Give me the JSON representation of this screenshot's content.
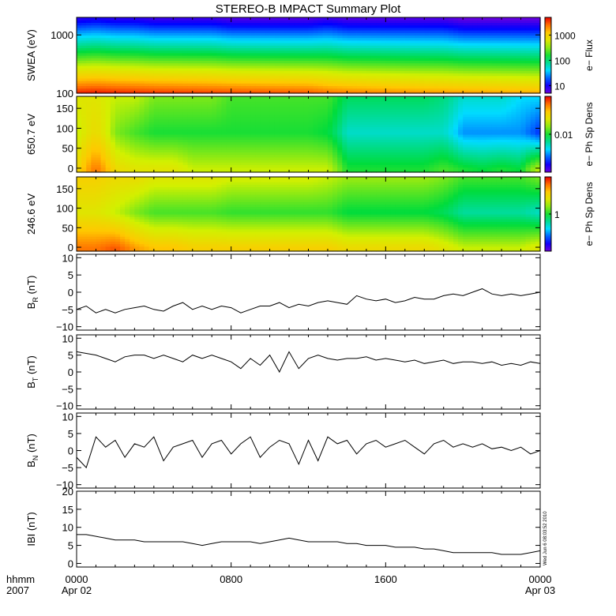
{
  "header": {
    "title": "STEREO-B IMPACT Summary Plot"
  },
  "time_axis": {
    "corner_top": "hhmm",
    "corner_bottom": "2007",
    "ticks": [
      {
        "hour": 0,
        "top": "0000",
        "bottom": "Apr 02"
      },
      {
        "hour": 8,
        "top": "0800",
        "bottom": ""
      },
      {
        "hour": 16,
        "top": "1600",
        "bottom": ""
      },
      {
        "hour": 24,
        "top": "0000",
        "bottom": "Apr 03"
      }
    ]
  },
  "stamp": "Wed Jun  6 08:03:52 2010",
  "colors": {
    "axis": "#000000",
    "line": "#000000"
  },
  "chart_data": [
    {
      "id": "swea",
      "type": "heatmap",
      "ylabel": "SWEA (eV)",
      "yscale": "log",
      "ylim": [
        100,
        2000
      ],
      "yticks": [
        100,
        1000
      ],
      "ytick_labels": [
        "100",
        "1000"
      ],
      "colorbar": {
        "label": "e− Flux",
        "scale": "log",
        "range": [
          5,
          5000
        ],
        "ticks": [
          "10",
          "100",
          "1000"
        ]
      },
      "time_hours": [
        0,
        1,
        2,
        3,
        4,
        5,
        6,
        7,
        8,
        9,
        10,
        11,
        12,
        13,
        14,
        15,
        16,
        17,
        18,
        19,
        20,
        21,
        22,
        23,
        24
      ],
      "low_energy_flux": [
        4200,
        4400,
        4100,
        3900,
        3700,
        3600,
        3500,
        3400,
        3300,
        3200,
        3100,
        3000,
        2950,
        2500,
        2300,
        2200,
        2100,
        2000,
        1900,
        1850,
        1800,
        1750,
        1700,
        1650,
        1600
      ],
      "high_energy_flux": [
        8,
        9,
        8,
        8,
        7,
        7,
        7,
        7,
        6,
        6,
        6,
        6,
        6,
        7,
        6,
        6,
        6,
        6,
        6,
        6,
        5,
        5,
        5,
        5,
        5
      ]
    },
    {
      "id": "pad650",
      "type": "heatmap",
      "ylabel": "650.7 eV",
      "ylim": [
        -10,
        180
      ],
      "yticks": [
        0,
        50,
        100,
        150
      ],
      "ytick_labels": [
        "0",
        "50",
        "100",
        "150"
      ],
      "colorbar": {
        "label": "e− Ph Sp Dens",
        "scale": "log",
        "range": [
          0.001,
          0.1
        ],
        "ticks": [
          "0.01"
        ]
      },
      "time_hours": [
        0,
        1,
        2,
        3,
        4,
        5,
        6,
        7,
        8,
        9,
        10,
        11,
        12,
        13,
        14,
        15,
        16,
        17,
        18,
        19,
        20,
        21,
        22,
        23,
        24
      ],
      "parallel": [
        0.03,
        0.06,
        0.03,
        0.025,
        0.025,
        0.025,
        0.02,
        0.02,
        0.02,
        0.02,
        0.02,
        0.02,
        0.02,
        0.02,
        0.01,
        0.01,
        0.01,
        0.01,
        0.01,
        0.012,
        0.01,
        0.009,
        0.01,
        0.009,
        0.02
      ],
      "perpendicular": [
        0.02,
        0.03,
        0.015,
        0.012,
        0.01,
        0.01,
        0.01,
        0.01,
        0.01,
        0.01,
        0.01,
        0.01,
        0.01,
        0.009,
        0.005,
        0.005,
        0.005,
        0.005,
        0.005,
        0.005,
        0.003,
        0.003,
        0.003,
        0.003,
        0.002
      ],
      "antiparallel": [
        0.025,
        0.025,
        0.02,
        0.02,
        0.015,
        0.015,
        0.015,
        0.015,
        0.012,
        0.012,
        0.012,
        0.012,
        0.012,
        0.012,
        0.008,
        0.008,
        0.008,
        0.008,
        0.008,
        0.007,
        0.005,
        0.005,
        0.005,
        0.004,
        0.004
      ]
    },
    {
      "id": "pad246",
      "type": "heatmap",
      "ylabel": "246.6 eV",
      "ylim": [
        -10,
        180
      ],
      "yticks": [
        0,
        50,
        100,
        150
      ],
      "ytick_labels": [
        "0",
        "50",
        "100",
        "150"
      ],
      "colorbar": {
        "label": "e− Ph Sp Dens",
        "scale": "log",
        "range": [
          0.1,
          10
        ],
        "ticks": [
          "1"
        ]
      },
      "time_hours": [
        0,
        1,
        2,
        3,
        4,
        5,
        6,
        7,
        8,
        9,
        10,
        11,
        12,
        13,
        14,
        15,
        16,
        17,
        18,
        19,
        20,
        21,
        22,
        23,
        24
      ],
      "parallel": [
        6,
        6,
        7,
        5,
        4,
        4,
        3.5,
        3.5,
        3.5,
        3.5,
        3.5,
        3.5,
        3.5,
        3.5,
        3,
        3,
        3,
        3,
        3,
        2.5,
        2,
        2,
        2,
        2,
        2.5
      ],
      "perpendicular": [
        2.5,
        2.5,
        2,
        1.5,
        1.2,
        1.2,
        1.2,
        1.2,
        1.1,
        1.1,
        1.1,
        1.1,
        1.1,
        1.1,
        0.9,
        0.9,
        0.9,
        0.9,
        0.9,
        0.8,
        0.6,
        0.6,
        0.6,
        0.6,
        0.5
      ],
      "antiparallel": [
        3.5,
        3.5,
        3,
        3,
        2.5,
        2.5,
        2.5,
        2.5,
        2.2,
        2.2,
        2.2,
        2.2,
        2.2,
        2,
        1.7,
        1.7,
        1.7,
        1.7,
        1.7,
        1.5,
        1.2,
        1.2,
        1.2,
        1.2,
        1.5
      ]
    },
    {
      "id": "br",
      "type": "line",
      "ylabel": "B_R (nT)",
      "ylim": [
        -11,
        11
      ],
      "yticks": [
        -10,
        -5,
        0,
        5,
        10
      ],
      "ytick_labels": [
        "−10",
        "−5",
        "0",
        "5",
        "10"
      ],
      "x_hours": [
        0,
        0.5,
        1,
        1.5,
        2,
        2.5,
        3,
        3.5,
        4,
        4.5,
        5,
        5.5,
        6,
        6.5,
        7,
        7.5,
        8,
        8.5,
        9,
        9.5,
        10,
        10.5,
        11,
        11.5,
        12,
        12.5,
        13,
        13.5,
        14,
        14.5,
        15,
        15.5,
        16,
        16.5,
        17,
        17.5,
        18,
        18.5,
        19,
        19.5,
        20,
        20.5,
        21,
        21.5,
        22,
        22.5,
        23,
        23.5,
        24
      ],
      "values": [
        -5,
        -4,
        -6,
        -5,
        -6,
        -5,
        -4.5,
        -4,
        -5,
        -5.5,
        -4,
        -3,
        -5,
        -4,
        -5,
        -4,
        -4.5,
        -6,
        -5,
        -4,
        -4,
        -3,
        -4.5,
        -3.5,
        -4,
        -3,
        -2.5,
        -3,
        -3.5,
        -1,
        -2,
        -2.5,
        -2,
        -3,
        -2.5,
        -1.5,
        -2,
        -2,
        -1,
        -0.5,
        -1,
        0,
        1,
        -0.5,
        -1,
        -0.5,
        -1,
        -0.5,
        0
      ]
    },
    {
      "id": "bt",
      "type": "line",
      "ylabel": "B_T (nT)",
      "ylim": [
        -11,
        11
      ],
      "yticks": [
        -10,
        -5,
        0,
        5,
        10
      ],
      "ytick_labels": [
        "−10",
        "−5",
        "0",
        "5",
        "10"
      ],
      "x_hours": [
        0,
        0.5,
        1,
        1.5,
        2,
        2.5,
        3,
        3.5,
        4,
        4.5,
        5,
        5.5,
        6,
        6.5,
        7,
        7.5,
        8,
        8.5,
        9,
        9.5,
        10,
        10.5,
        11,
        11.5,
        12,
        12.5,
        13,
        13.5,
        14,
        14.5,
        15,
        15.5,
        16,
        16.5,
        17,
        17.5,
        18,
        18.5,
        19,
        19.5,
        20,
        20.5,
        21,
        21.5,
        22,
        22.5,
        23,
        23.5,
        24
      ],
      "values": [
        6,
        5.5,
        5,
        4,
        3,
        4.5,
        5,
        5,
        4,
        5,
        4,
        3,
        5,
        4,
        5,
        4,
        3,
        1,
        4,
        2,
        5,
        0,
        6,
        1,
        4,
        5,
        4,
        3.5,
        4,
        4,
        4.5,
        3.5,
        4,
        3.5,
        3,
        3.5,
        2.5,
        3,
        3.5,
        2.5,
        3,
        3,
        2.5,
        3,
        2,
        2.5,
        2,
        3,
        2.5
      ]
    },
    {
      "id": "bn",
      "type": "line",
      "ylabel": "B_N (nT)",
      "ylim": [
        -11,
        11
      ],
      "yticks": [
        -10,
        -5,
        0,
        5,
        10
      ],
      "ytick_labels": [
        "−10",
        "−5",
        "0",
        "5",
        "10"
      ],
      "x_hours": [
        0,
        0.5,
        1,
        1.5,
        2,
        2.5,
        3,
        3.5,
        4,
        4.5,
        5,
        5.5,
        6,
        6.5,
        7,
        7.5,
        8,
        8.5,
        9,
        9.5,
        10,
        10.5,
        11,
        11.5,
        12,
        12.5,
        13,
        13.5,
        14,
        14.5,
        15,
        15.5,
        16,
        16.5,
        17,
        17.5,
        18,
        18.5,
        19,
        19.5,
        20,
        20.5,
        21,
        21.5,
        22,
        22.5,
        23,
        23.5,
        24
      ],
      "values": [
        -2,
        -5,
        4,
        1,
        3,
        -2,
        2,
        1,
        4,
        -3,
        1,
        2,
        3,
        -2,
        2,
        3,
        -1,
        2,
        4,
        -2,
        1,
        3,
        2,
        -4,
        3,
        -3,
        4,
        2,
        3,
        -1,
        2,
        3,
        1,
        2,
        3,
        1,
        -1,
        2,
        3,
        1,
        2,
        1,
        2,
        0.5,
        1,
        0,
        1,
        -1,
        0
      ]
    },
    {
      "id": "bmag",
      "type": "line",
      "ylabel": "IBI (nT)",
      "ylim": [
        -1,
        20
      ],
      "yticks": [
        0,
        5,
        10,
        15,
        20
      ],
      "ytick_labels": [
        "0",
        "5",
        "10",
        "15",
        "20"
      ],
      "x_hours": [
        0,
        0.5,
        1,
        1.5,
        2,
        2.5,
        3,
        3.5,
        4,
        4.5,
        5,
        5.5,
        6,
        6.5,
        7,
        7.5,
        8,
        8.5,
        9,
        9.5,
        10,
        10.5,
        11,
        11.5,
        12,
        12.5,
        13,
        13.5,
        14,
        14.5,
        15,
        15.5,
        16,
        16.5,
        17,
        17.5,
        18,
        18.5,
        19,
        19.5,
        20,
        20.5,
        21,
        21.5,
        22,
        22.5,
        23,
        23.5,
        24
      ],
      "values": [
        8,
        8,
        7.5,
        7,
        6.5,
        6.5,
        6.5,
        6,
        6,
        6,
        6,
        6,
        5.5,
        5,
        5.5,
        6,
        6,
        6,
        6,
        5.5,
        6,
        6.5,
        7,
        6.5,
        6,
        6,
        6,
        6,
        5.5,
        5.5,
        5,
        5,
        5,
        4.5,
        4.5,
        4.5,
        4,
        4,
        3.5,
        3,
        3,
        3,
        3,
        3,
        2.5,
        2.5,
        2.5,
        3,
        3.5
      ]
    }
  ]
}
